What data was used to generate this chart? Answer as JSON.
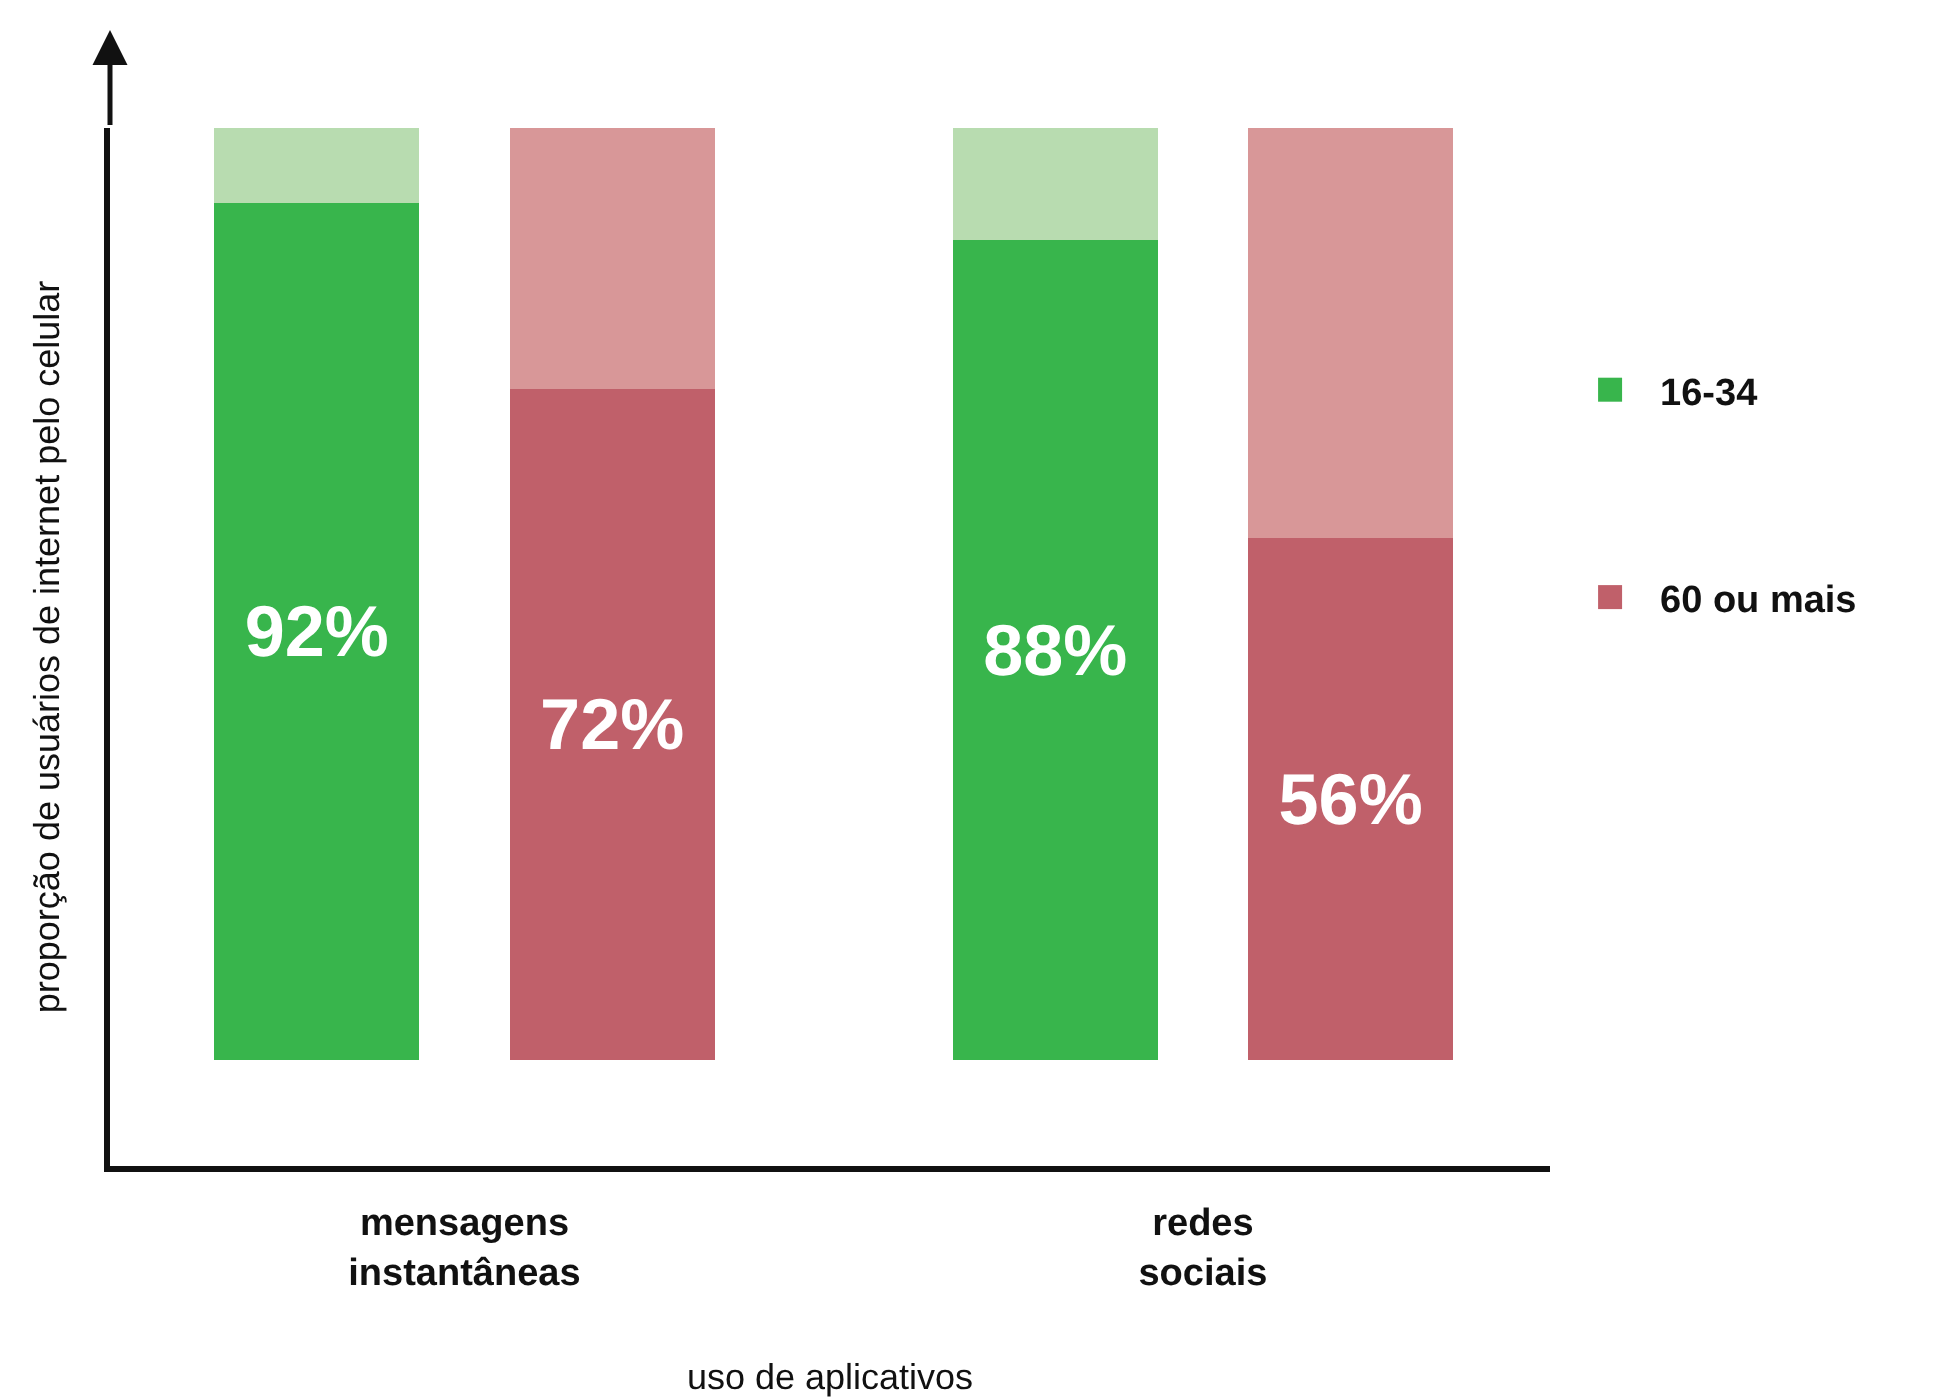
{
  "chart_data": {
    "type": "bar",
    "xlabel": "uso de aplicativos",
    "ylabel": "proporção de usuários de internet pelo celular",
    "categories": [
      null,
      "mensagens\ninstantâneas",
      null,
      null,
      null,
      null,
      "redes\nsociais",
      null
    ],
    "stacked": true,
    "series": [
      {
        "name": "16-34",
        "color": "#38b54c",
        "values": [
          92,
          null,
          null,
          null,
          null,
          88,
          null,
          null
        ],
        "value_labels": [
          "92%",
          null,
          null,
          null,
          null,
          "88%",
          null,
          null
        ]
      },
      {
        "color": "#b8dcb0",
        "values": [
          8,
          null,
          null,
          null,
          null,
          12,
          null,
          null
        ]
      },
      {
        "name": "60 ou mais",
        "color": "#c0606a",
        "values": [
          null,
          null,
          72,
          null,
          null,
          null,
          null,
          56
        ],
        "value_labels": [
          null,
          null,
          "72%",
          null,
          null,
          null,
          null,
          "56%"
        ]
      },
      {
        "color": "#d89798",
        "values": [
          null,
          null,
          28,
          null,
          null,
          null,
          null,
          44
        ]
      }
    ],
    "ylim": [
      -11.4,
      100
    ],
    "tick_labels": "x",
    "legend": "right"
  }
}
